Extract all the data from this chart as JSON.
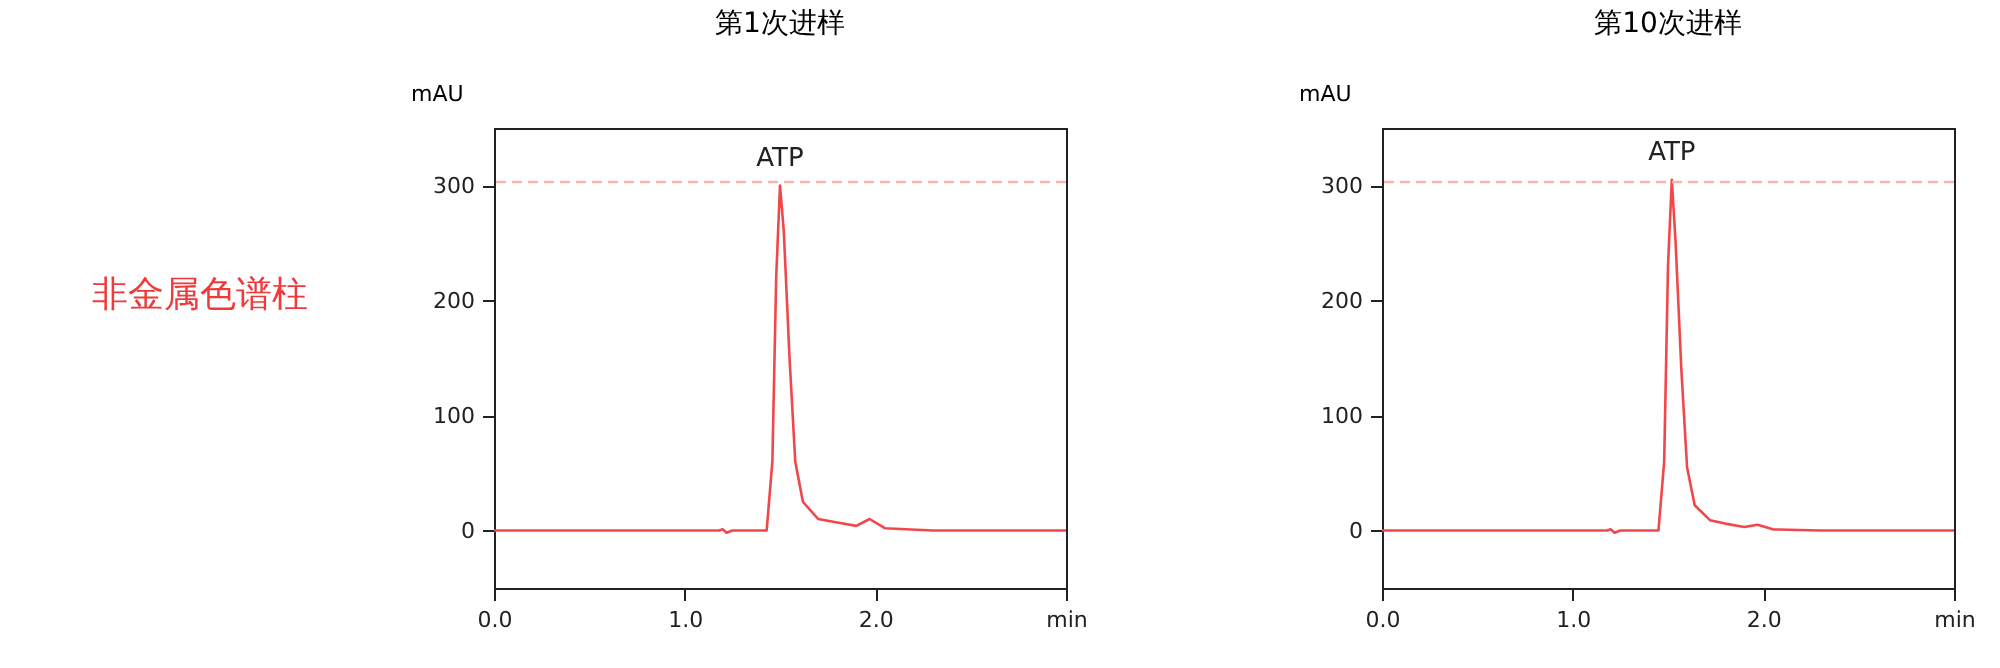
{
  "chart_data": [
    {
      "type": "line",
      "title": "第1次进样",
      "ylabel": "mAU",
      "x": [
        0,
        1.18,
        1.2,
        1.22,
        1.25,
        1.43,
        1.46,
        1.48,
        1.5,
        1.52,
        1.55,
        1.58,
        1.62,
        1.7,
        1.8,
        1.9,
        1.97,
        2.05,
        2.3,
        3.0
      ],
      "series": [
        {
          "color": "#f0484a",
          "values": [
            0,
            0,
            1,
            -2,
            0,
            0,
            60,
            220,
            300,
            260,
            150,
            60,
            25,
            10,
            7,
            4,
            10,
            2,
            0,
            0
          ]
        }
      ],
      "xlim": [
        0,
        3
      ],
      "xticks": [
        {
          "value": 0,
          "label": "0.0"
        },
        {
          "value": 1,
          "label": "1.0"
        },
        {
          "value": 2,
          "label": "2.0"
        },
        {
          "value": 3,
          "label": "min"
        }
      ],
      "ylim": [
        -50,
        350
      ],
      "yticks": [
        0,
        100,
        200,
        300
      ],
      "grid": false,
      "marker": "none",
      "line_style": "solid",
      "ref_lines": [
        {
          "axis": "y",
          "value": 303,
          "label": null,
          "color": "#f8b4aa",
          "line_style": "dashed"
        }
      ],
      "annotations": [
        {
          "text": "ATP",
          "x": 1.5,
          "y": 300
        },
        "非金属色谱柱"
      ]
    },
    {
      "type": "line",
      "title": "第10次进样",
      "ylabel": "mAU",
      "x": [
        0,
        1.18,
        1.2,
        1.22,
        1.25,
        1.45,
        1.48,
        1.5,
        1.52,
        1.54,
        1.57,
        1.6,
        1.64,
        1.72,
        1.8,
        1.9,
        1.97,
        2.05,
        2.3,
        3.0
      ],
      "series": [
        {
          "color": "#f0484a",
          "values": [
            0,
            0,
            1,
            -2,
            0,
            0,
            60,
            230,
            305,
            250,
            140,
            55,
            22,
            9,
            6,
            3,
            5,
            1,
            0,
            0
          ]
        }
      ],
      "xlim": [
        0,
        3
      ],
      "xticks": [
        {
          "value": 0,
          "label": "0.0"
        },
        {
          "value": 1,
          "label": "1.0"
        },
        {
          "value": 2,
          "label": "2.0"
        },
        {
          "value": 3,
          "label": "min"
        }
      ],
      "ylim": [
        -50,
        350
      ],
      "yticks": [
        0,
        100,
        200,
        300
      ],
      "grid": false,
      "marker": "none",
      "line_style": "solid",
      "ref_lines": [
        {
          "axis": "y",
          "value": 303,
          "label": null,
          "color": "#f8b4aa",
          "line_style": "dashed"
        }
      ],
      "annotations": [
        {
          "text": "ATP",
          "x": 1.52,
          "y": 305
        }
      ]
    }
  ]
}
